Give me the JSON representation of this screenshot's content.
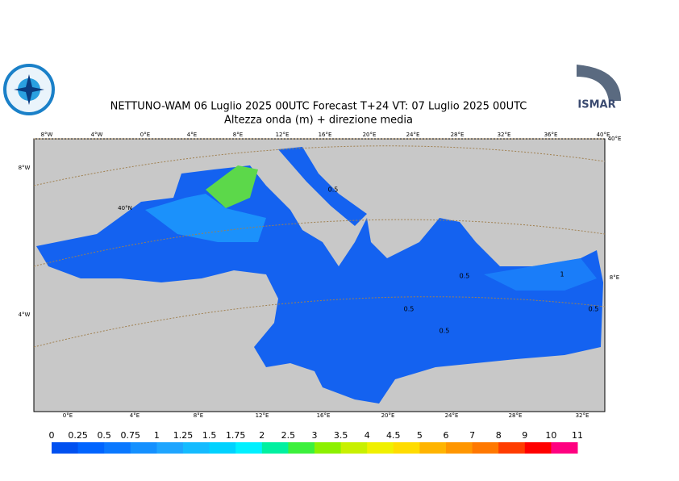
{
  "header": {
    "title": "NETTUNO-WAM  06  Luglio   2025 00UTC Forecast T+24 VT: 07  Luglio   2025 00UTC",
    "subtitle": "Altezza onda (m) + direzione media",
    "logo_text": "ISMAR"
  },
  "map": {
    "top_lon_labels": [
      "8°W",
      "4°W",
      "0°E",
      "4°E",
      "8°E",
      "12°E",
      "16°E",
      "20°E",
      "24°E",
      "28°E",
      "32°E",
      "36°E",
      "40°E"
    ],
    "bottom_lon_labels": [
      "0°E",
      "4°E",
      "8°E",
      "12°E",
      "16°E",
      "20°E",
      "24°E",
      "28°E",
      "32°E"
    ],
    "left_labels": [
      "8°W",
      "4°W"
    ],
    "inner_labels": [
      "40°N",
      "40°E",
      "8°E"
    ],
    "contour_labels": [
      "0.5",
      "0.5",
      "0.5",
      "0.5",
      "0.5",
      "1"
    ]
  },
  "colorbar": {
    "labels": [
      0,
      0.25,
      0.5,
      0.75,
      1,
      1.25,
      1.5,
      1.75,
      2,
      2.5,
      3,
      3.5,
      4,
      4.5,
      5,
      6,
      7,
      8,
      9,
      10,
      11
    ],
    "colors": [
      "#0050f0",
      "#0064ff",
      "#0a78ff",
      "#1490ff",
      "#1ea5ff",
      "#14bbff",
      "#00d2ff",
      "#00f0ff",
      "#00f0a0",
      "#3cf03c",
      "#8cf000",
      "#c8f000",
      "#f0f000",
      "#ffdc00",
      "#ffb400",
      "#ff9600",
      "#ff7800",
      "#ff3c00",
      "#ff0000",
      "#ff0080",
      "#ff00ff"
    ]
  }
}
